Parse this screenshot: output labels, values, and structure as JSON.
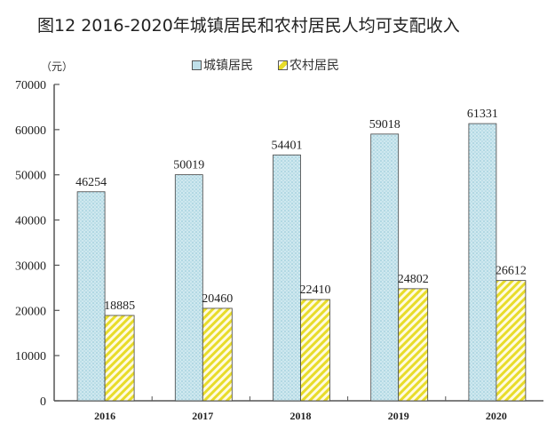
{
  "chart_data": {
    "type": "bar",
    "title": "图12  2016-2020年城镇居民和农村居民人均可支配收入",
    "ylabel": "（元）",
    "xlabel": "",
    "categories": [
      "2016",
      "2017",
      "2018",
      "2019",
      "2020"
    ],
    "series": [
      {
        "name": "城镇居民",
        "values": [
          46254,
          50019,
          54401,
          59018,
          61331
        ],
        "color": "#bfe0ea"
      },
      {
        "name": "农村居民",
        "values": [
          18885,
          20460,
          22410,
          24802,
          26612
        ],
        "color": "#e8dc2a"
      }
    ],
    "ylim": [
      0,
      70000
    ],
    "yticks": [
      "0",
      "10000",
      "20000",
      "30000",
      "40000",
      "50000",
      "60000",
      "70000"
    ],
    "grid": false,
    "legend_position": "top-center"
  }
}
